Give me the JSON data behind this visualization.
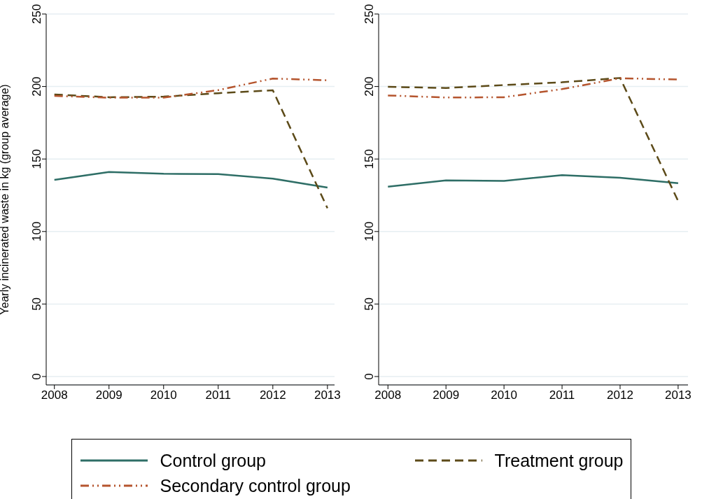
{
  "chart_data": [
    {
      "type": "line",
      "ylabel": "Yearly incinerated waste in kg (group average)",
      "x": [
        2008,
        2009,
        2010,
        2011,
        2012,
        2013
      ],
      "xlim": [
        2007.85,
        2013.13
      ],
      "xticks": [
        2008,
        2009,
        2010,
        2011,
        2012,
        2013
      ],
      "ylim": [
        0,
        250
      ],
      "yticks": [
        0,
        50,
        100,
        150,
        200,
        250
      ],
      "grid": "y",
      "legend": "bottom",
      "series": [
        {
          "name": "Control group",
          "color": "#2e6e66",
          "line_style": "solid",
          "values": [
            135.6,
            141,
            139.8,
            139.6,
            136.5,
            130.3
          ]
        },
        {
          "name": "Treatment group",
          "color": "#5c4a18",
          "line_style": "dashed",
          "values": [
            194.5,
            192.6,
            193,
            195.4,
            197.4,
            116.1
          ]
        },
        {
          "name": "Secondary control group",
          "color": "#b5552e",
          "line_style": "dashdot",
          "values": [
            193.5,
            192.3,
            192.3,
            197.5,
            205.5,
            204.3
          ]
        }
      ]
    },
    {
      "type": "line",
      "x": [
        2008,
        2009,
        2010,
        2011,
        2012,
        2013
      ],
      "xlim": [
        2007.84,
        2013.17
      ],
      "xticks": [
        2008,
        2009,
        2010,
        2011,
        2012,
        2013
      ],
      "ylim": [
        0,
        250
      ],
      "yticks": [
        0,
        50,
        100,
        150,
        200,
        250
      ],
      "grid": "y",
      "series": [
        {
          "color": "#2e6e66",
          "line_style": "solid",
          "values": [
            130.9,
            135.2,
            134.9,
            138.9,
            137.1,
            133.3
          ]
        },
        {
          "color": "#5c4a18",
          "line_style": "dashed",
          "values": [
            199.8,
            199,
            201,
            202.9,
            205.9,
            121
          ]
        },
        {
          "color": "#b5552e",
          "line_style": "dashdot",
          "values": [
            193.8,
            192.4,
            192.6,
            198.2,
            205.7,
            204.8
          ]
        }
      ]
    }
  ]
}
